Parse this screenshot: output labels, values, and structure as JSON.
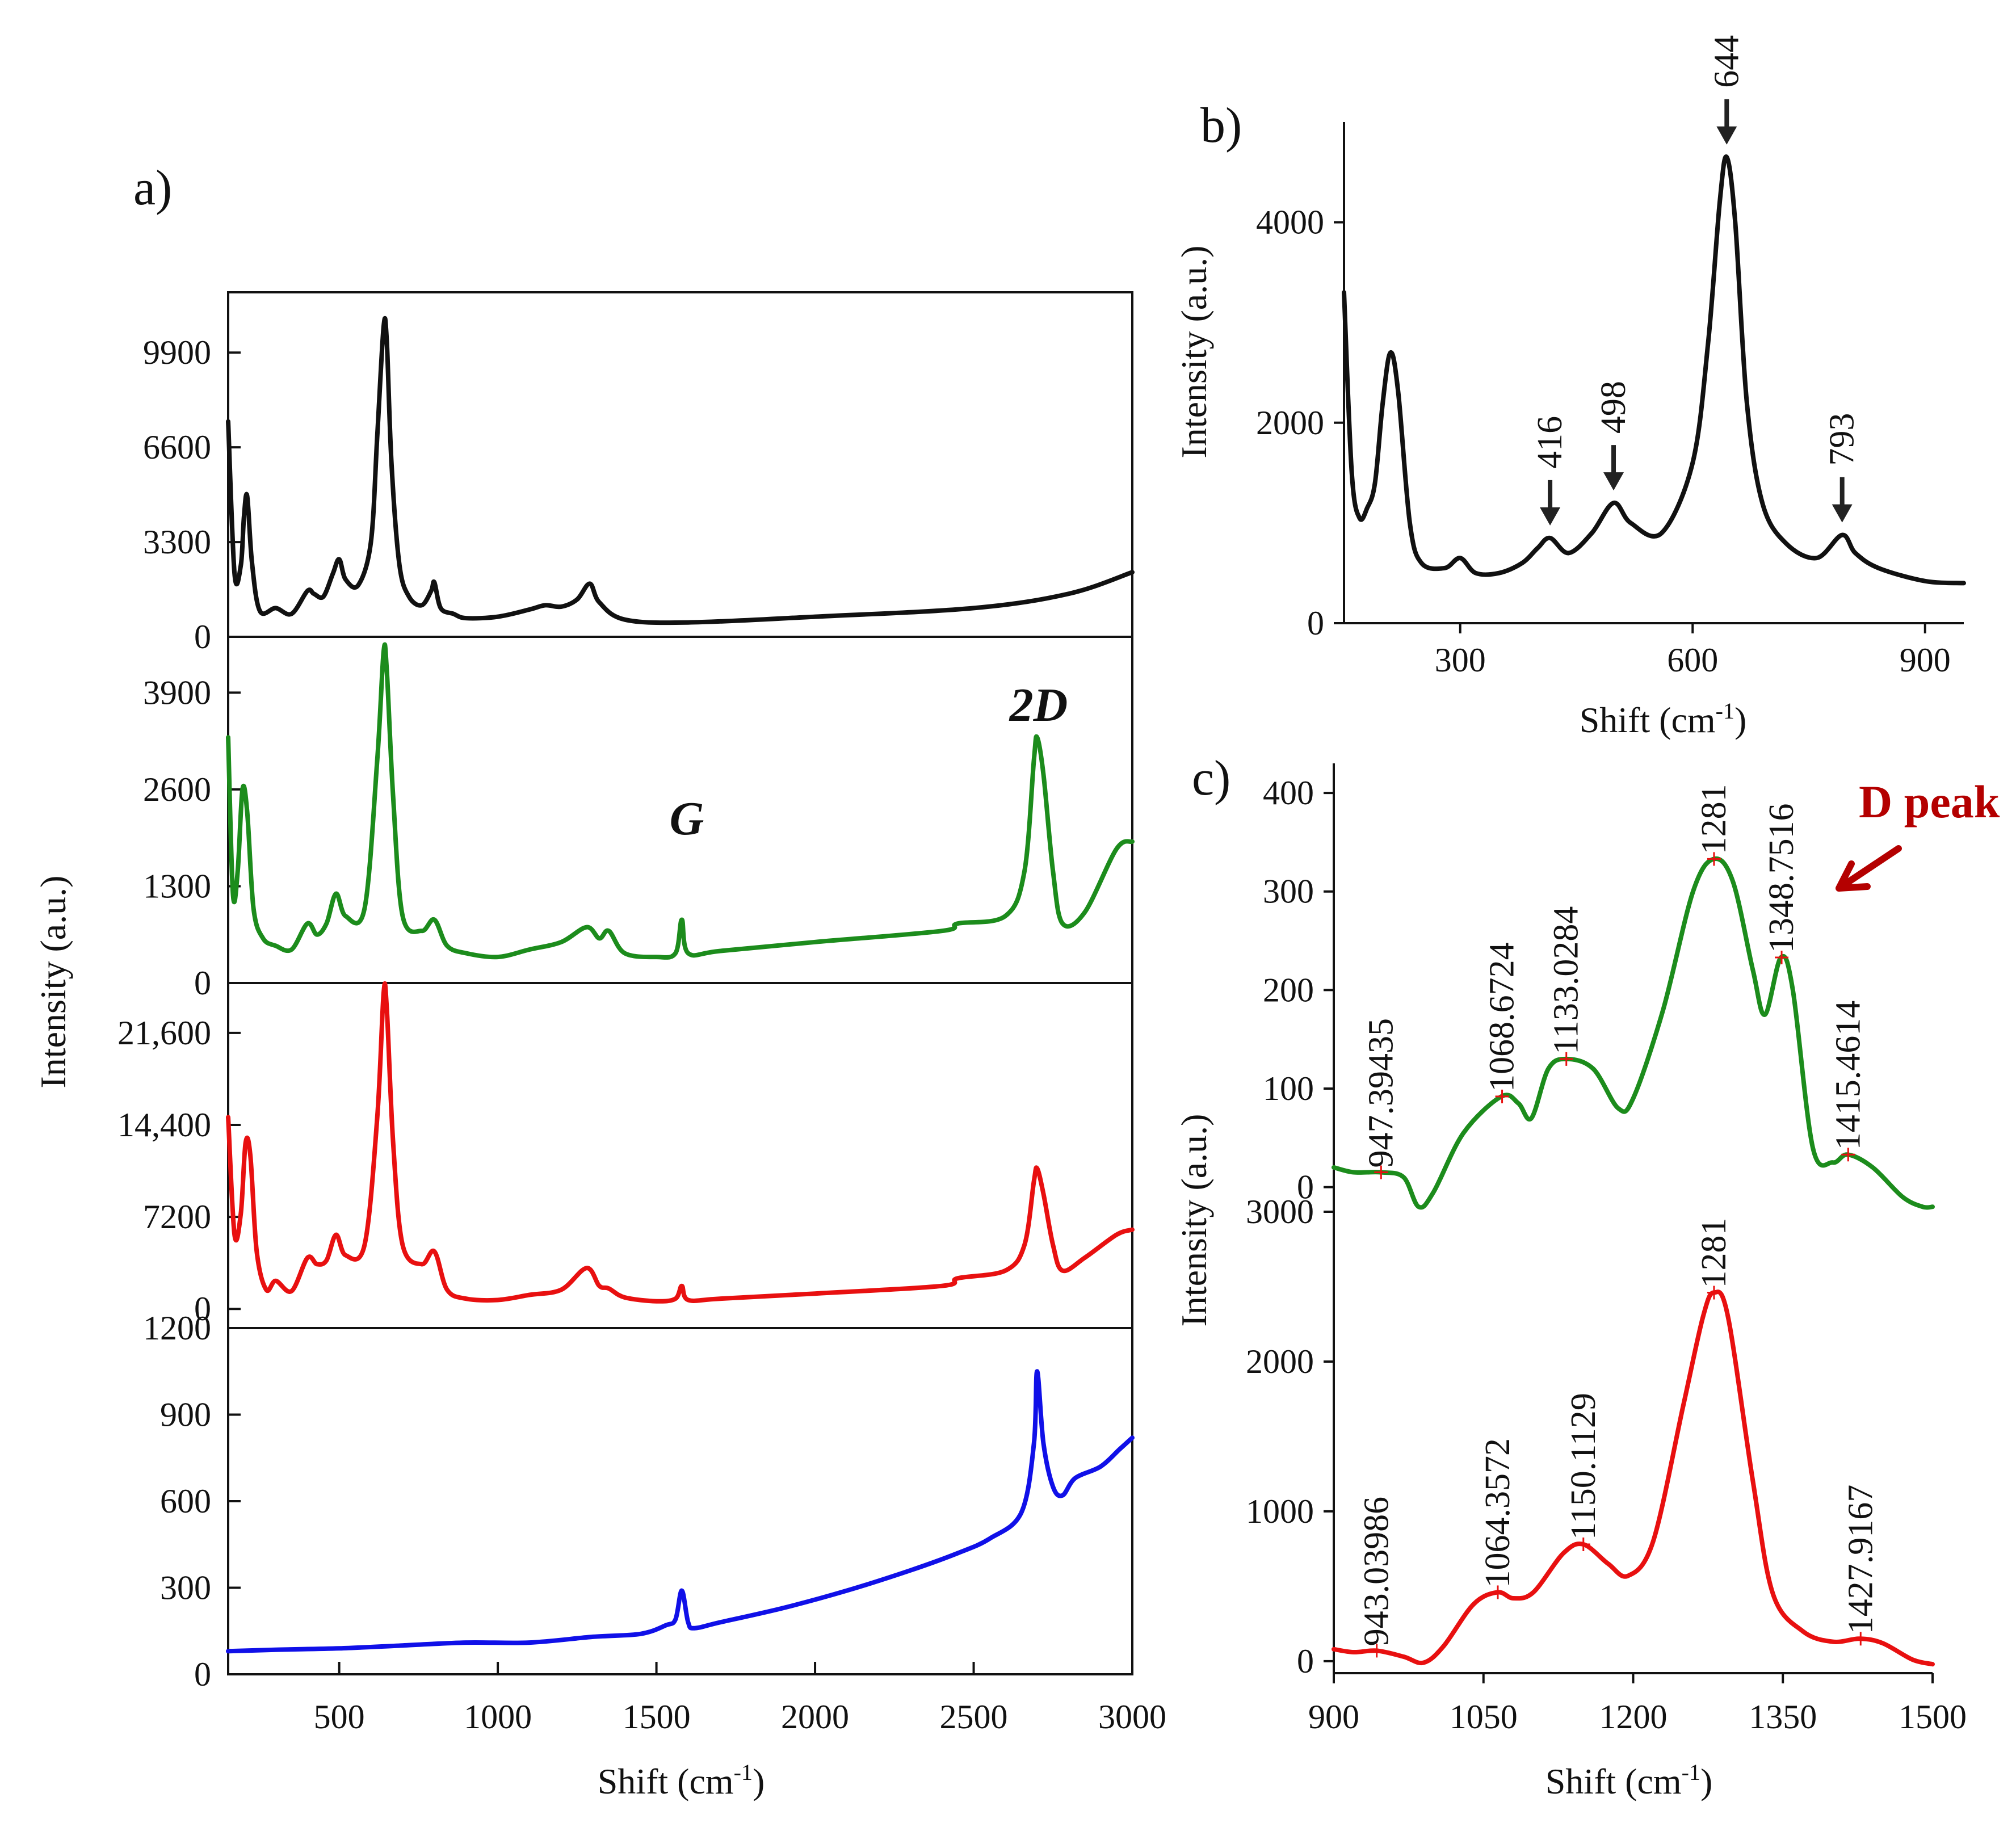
{
  "figure": {
    "panel_a": "a)",
    "panel_b": "b)",
    "panel_c": "c)"
  },
  "colors": {
    "black": "#111111",
    "green": "#1c8c1c",
    "red": "#e81010",
    "blue": "#1010e8",
    "darkred": "#b40000",
    "marker": "#e81010"
  },
  "chart_data": [
    {
      "id": "a",
      "type": "line",
      "xlabel": "Shift (cm",
      "xlabel_sup": "-1",
      "xlabel_end": ")",
      "ylabel": "Intensity (a.u.)",
      "xlim": [
        150,
        3000
      ],
      "xticks": [
        "500",
        "1000",
        "1500",
        "2000",
        "2500",
        "3000"
      ],
      "xtick_values": [
        500,
        1000,
        1500,
        2000,
        2500,
        3000
      ],
      "annotations": {
        "g": "G",
        "twod": "2D"
      },
      "subplots": [
        {
          "name": "black",
          "color": "#111111",
          "ylim": [
            0,
            12000
          ],
          "yticks": [
            "0",
            "3300",
            "6600",
            "9900"
          ],
          "ytick_values": [
            0,
            3300,
            6600,
            9900
          ],
          "x": [
            150,
            170,
            190,
            200,
            210,
            225,
            250,
            300,
            350,
            400,
            420,
            450,
            480,
            500,
            520,
            560,
            600,
            620,
            640,
            650,
            665,
            690,
            720,
            760,
            790,
            800,
            820,
            860,
            900,
            1000,
            1100,
            1150,
            1200,
            1250,
            1290,
            1320,
            1400,
            1600,
            2000,
            2500,
            2800,
            3000
          ],
          "y": [
            7500,
            2200,
            2500,
            4200,
            4900,
            2600,
            900,
            1000,
            800,
            1600,
            1500,
            1400,
            2200,
            2700,
            2000,
            1800,
            3300,
            7000,
            10800,
            10300,
            6000,
            2500,
            1400,
            1100,
            1600,
            1900,
            1000,
            800,
            650,
            700,
            950,
            1100,
            1050,
            1300,
            1850,
            1200,
            600,
            500,
            700,
            1000,
            1500,
            2250
          ]
        },
        {
          "name": "green",
          "color": "#1c8c1c",
          "ylim": [
            0,
            4650
          ],
          "yticks": [
            "0",
            "1300",
            "2600",
            "3900"
          ],
          "ytick_values": [
            0,
            1300,
            2600,
            3900
          ],
          "x": [
            150,
            165,
            180,
            195,
            210,
            230,
            260,
            300,
            350,
            400,
            430,
            460,
            490,
            520,
            580,
            620,
            640,
            650,
            670,
            700,
            760,
            800,
            840,
            900,
            1000,
            1100,
            1200,
            1280,
            1320,
            1350,
            1400,
            1500,
            1560,
            1580,
            1600,
            1700,
            2000,
            2400,
            2450,
            2600,
            2660,
            2690,
            2700,
            2720,
            2750,
            2780,
            2850,
            2950,
            3000
          ],
          "y": [
            3300,
            1200,
            1500,
            2600,
            2300,
            1000,
            600,
            500,
            450,
            800,
            650,
            800,
            1200,
            900,
            1000,
            3000,
            4450,
            4200,
            2500,
            900,
            700,
            850,
            500,
            400,
            350,
            450,
            550,
            750,
            600,
            700,
            400,
            350,
            400,
            850,
            400,
            430,
            550,
            700,
            800,
            900,
            1500,
            3000,
            3300,
            2800,
            1500,
            800,
            950,
            1800,
            1900
          ]
        },
        {
          "name": "red",
          "color": "#e81010",
          "ylim": [
            -1500,
            25500
          ],
          "yticks": [
            "0",
            "7200",
            "14,400",
            "21,600"
          ],
          "ytick_values": [
            0,
            7200,
            14400,
            21600
          ],
          "x": [
            150,
            170,
            190,
            205,
            220,
            240,
            270,
            300,
            350,
            400,
            430,
            460,
            490,
            520,
            580,
            620,
            640,
            650,
            670,
            700,
            760,
            800,
            840,
            900,
            1000,
            1100,
            1200,
            1280,
            1320,
            1350,
            1400,
            1500,
            1560,
            1580,
            1600,
            1700,
            2000,
            2400,
            2450,
            2600,
            2660,
            2690,
            2700,
            2720,
            2750,
            2780,
            2850,
            2950,
            3000
          ],
          "y": [
            15000,
            5800,
            7500,
            13000,
            12000,
            4500,
            1500,
            2200,
            1400,
            4000,
            3500,
            3800,
            5800,
            4200,
            5000,
            15000,
            24700,
            23500,
            13000,
            5000,
            3500,
            4500,
            1500,
            800,
            700,
            1100,
            1500,
            3200,
            1800,
            1600,
            900,
            600,
            800,
            1800,
            700,
            800,
            1200,
            1800,
            2400,
            3000,
            5000,
            10000,
            11000,
            9000,
            5000,
            3000,
            4000,
            5800,
            6200
          ]
        },
        {
          "name": "blue",
          "color": "#1010e8",
          "ylim": [
            0,
            1200
          ],
          "yticks": [
            "0",
            "300",
            "600",
            "900",
            "1200"
          ],
          "ytick_values": [
            0,
            300,
            600,
            900,
            1200
          ],
          "x": [
            150,
            300,
            500,
            700,
            900,
            1100,
            1300,
            1450,
            1530,
            1560,
            1580,
            1600,
            1620,
            1700,
            1900,
            2100,
            2300,
            2450,
            2550,
            2650,
            2690,
            2700,
            2720,
            2750,
            2780,
            2820,
            2900,
            2960,
            3000
          ],
          "y": [
            80,
            85,
            90,
            100,
            110,
            110,
            130,
            140,
            170,
            190,
            290,
            180,
            160,
            180,
            230,
            290,
            360,
            420,
            470,
            560,
            800,
            1050,
            800,
            650,
            620,
            680,
            720,
            780,
            820
          ]
        }
      ]
    },
    {
      "id": "b",
      "type": "line",
      "xlabel": "Shift (cm",
      "xlabel_sup": "-1",
      "xlabel_end": ")",
      "ylabel": "Intensity (a.u.)",
      "xlim": [
        150,
        950
      ],
      "ylim": [
        0,
        5000
      ],
      "color": "#111111",
      "xticks": [
        "300",
        "600",
        "900"
      ],
      "xtick_values": [
        300,
        600,
        900
      ],
      "yticks": [
        "0",
        "2000",
        "4000"
      ],
      "ytick_values": [
        0,
        2000,
        4000
      ],
      "peaks": [
        {
          "label": "416",
          "x": 416,
          "y": 850
        },
        {
          "label": "498",
          "x": 498,
          "y": 1200
        },
        {
          "label": "644",
          "x": 644,
          "y": 4650
        },
        {
          "label": "793",
          "x": 793,
          "y": 880
        }
      ],
      "x": [
        150,
        160,
        170,
        180,
        190,
        200,
        210,
        220,
        235,
        250,
        280,
        300,
        320,
        350,
        380,
        400,
        416,
        440,
        470,
        498,
        520,
        560,
        600,
        620,
        635,
        644,
        655,
        670,
        690,
        720,
        760,
        793,
        810,
        840,
        900,
        950
      ],
      "y": [
        3300,
        1500,
        1050,
        1150,
        1400,
        2200,
        2700,
        2300,
        1000,
        600,
        550,
        650,
        500,
        500,
        600,
        750,
        850,
        700,
        900,
        1200,
        1000,
        900,
        1600,
        2800,
        4200,
        4650,
        4000,
        2200,
        1200,
        800,
        650,
        880,
        700,
        550,
        420,
        400
      ]
    },
    {
      "id": "c",
      "type": "line",
      "xlabel": "Shift (cm",
      "xlabel_sup": "-1",
      "xlabel_end": ")",
      "ylabel": "Intensity (a.u.)",
      "xlim": [
        900,
        1500
      ],
      "xticks": [
        "900",
        "1050",
        "1200",
        "1350",
        "1500"
      ],
      "xtick_values": [
        900,
        1050,
        1200,
        1350,
        1500
      ],
      "annotation": "D peak",
      "subplots": [
        {
          "name": "green",
          "color": "#1c8c1c",
          "ylim": [
            -25,
            430
          ],
          "yticks": [
            "0",
            "100",
            "200",
            "300",
            "400"
          ],
          "ytick_values": [
            0,
            100,
            200,
            300,
            400
          ],
          "peaks": [
            {
              "label": "947.39435",
              "x": 947.39,
              "y": 15
            },
            {
              "label": "1068.6724",
              "x": 1068.67,
              "y": 92
            },
            {
              "label": "1133.0284",
              "x": 1133.03,
              "y": 130
            },
            {
              "label": "1281",
              "x": 1281,
              "y": 333
            },
            {
              "label": "1348.7516",
              "x": 1348.75,
              "y": 233
            },
            {
              "label": "1415.4614",
              "x": 1415.46,
              "y": 33
            }
          ],
          "x": [
            900,
            920,
            947,
            970,
            985,
            1000,
            1030,
            1068,
            1085,
            1098,
            1115,
            1133,
            1160,
            1185,
            1200,
            1230,
            1260,
            1281,
            1300,
            1320,
            1332,
            1348,
            1360,
            1380,
            1400,
            1415,
            1440,
            1470,
            1490,
            1500
          ],
          "y": [
            20,
            15,
            15,
            10,
            -20,
            -5,
            55,
            92,
            85,
            70,
            120,
            130,
            120,
            80,
            90,
            180,
            300,
            333,
            310,
            220,
            175,
            233,
            200,
            40,
            25,
            33,
            20,
            -10,
            -20,
            -20
          ]
        },
        {
          "name": "red",
          "color": "#e81010",
          "ylim": [
            -80,
            3000
          ],
          "yticks": [
            "0",
            "1000",
            "2000",
            "3000"
          ],
          "ytick_values": [
            0,
            1000,
            2000,
            3000
          ],
          "peaks": [
            {
              "label": "943.03986",
              "x": 943.04,
              "y": 70
            },
            {
              "label": "1064.3572",
              "x": 1064.36,
              "y": 460
            },
            {
              "label": "1150.1129",
              "x": 1150.11,
              "y": 780
            },
            {
              "label": "1281",
              "x": 1281,
              "y": 2460
            },
            {
              "label": "1427.9167",
              "x": 1427.92,
              "y": 150
            }
          ],
          "x": [
            900,
            920,
            943,
            970,
            990,
            1010,
            1040,
            1064,
            1080,
            1100,
            1130,
            1150,
            1175,
            1195,
            1220,
            1250,
            1270,
            1281,
            1295,
            1320,
            1340,
            1370,
            1400,
            1427,
            1450,
            1480,
            1500
          ],
          "y": [
            80,
            60,
            70,
            30,
            -10,
            100,
            380,
            460,
            420,
            460,
            720,
            780,
            650,
            570,
            800,
            1700,
            2300,
            2460,
            2300,
            1200,
            450,
            200,
            130,
            150,
            120,
            10,
            -20
          ]
        }
      ]
    }
  ]
}
